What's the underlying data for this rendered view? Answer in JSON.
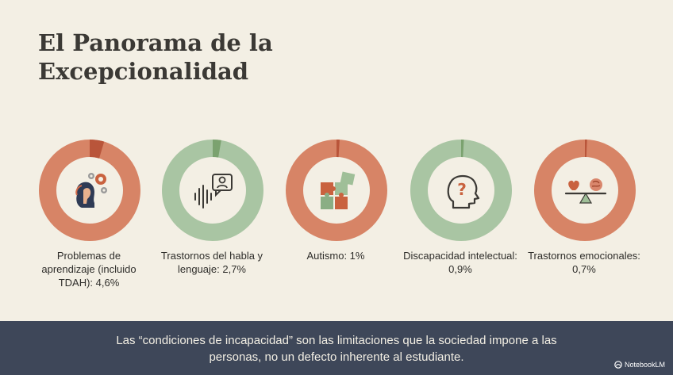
{
  "title": "El Panorama de la Excepcionalidad",
  "colors": {
    "coral": "#d78466",
    "sage": "#a9c5a3",
    "coral_highlight": "#b9553a",
    "sage_highlight": "#7ba26f",
    "footer_bg": "#3e4759",
    "background": "#f3efe4"
  },
  "categories": [
    {
      "label": "Problemas de aprendizaje (incluido TDAH): 4,6%",
      "value": 4.6,
      "color": "coral",
      "icon": "head-gears-icon"
    },
    {
      "label": "Trastornos del habla y lenguaje: 2,7%",
      "value": 2.7,
      "color": "sage",
      "icon": "speech-wave-icon"
    },
    {
      "label": "Autismo: 1%",
      "value": 1,
      "color": "coral",
      "icon": "puzzle-icon"
    },
    {
      "label": "Discapacidad intelectual: 0,9%",
      "value": 0.9,
      "color": "sage",
      "icon": "question-head-icon"
    },
    {
      "label": "Trastornos emocionales: 0,7%",
      "value": 0.7,
      "color": "coral",
      "icon": "heart-brain-balance-icon"
    }
  ],
  "footer": {
    "text": "Las “condiciones de incapacidad” son las limitaciones que la sociedad impone a las personas, no un defecto inherente al estudiante."
  },
  "badge": {
    "label": "NotebookLM",
    "icon": "notebooklm-logo-icon"
  }
}
